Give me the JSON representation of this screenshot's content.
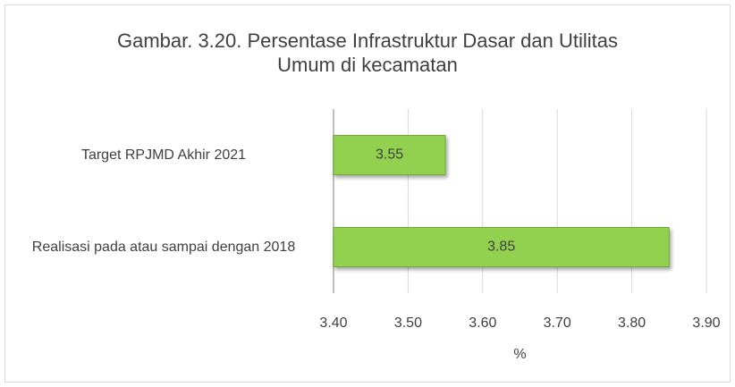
{
  "chart_data": {
    "type": "hbar",
    "title": "Gambar. 3.20. Persentase Infrastruktur Dasar dan Utilitas Umum di kecamatan",
    "categories": [
      "Target RPJMD Akhir 2021",
      "Realisasi pada atau sampai dengan 2018"
    ],
    "values": [
      3.55,
      3.85
    ],
    "value_labels": [
      "3.55",
      "3.85"
    ],
    "color": "#92d050",
    "xlabel": "%",
    "xlim": [
      3.4,
      3.9
    ],
    "xticks": [
      {
        "value": 3.4,
        "label": "3.40"
      },
      {
        "value": 3.5,
        "label": "3.50"
      },
      {
        "value": 3.6,
        "label": "3.60"
      },
      {
        "value": 3.7,
        "label": "3.70"
      },
      {
        "value": 3.8,
        "label": "3.80"
      },
      {
        "value": 3.9,
        "label": "3.90"
      }
    ],
    "grid": true
  }
}
